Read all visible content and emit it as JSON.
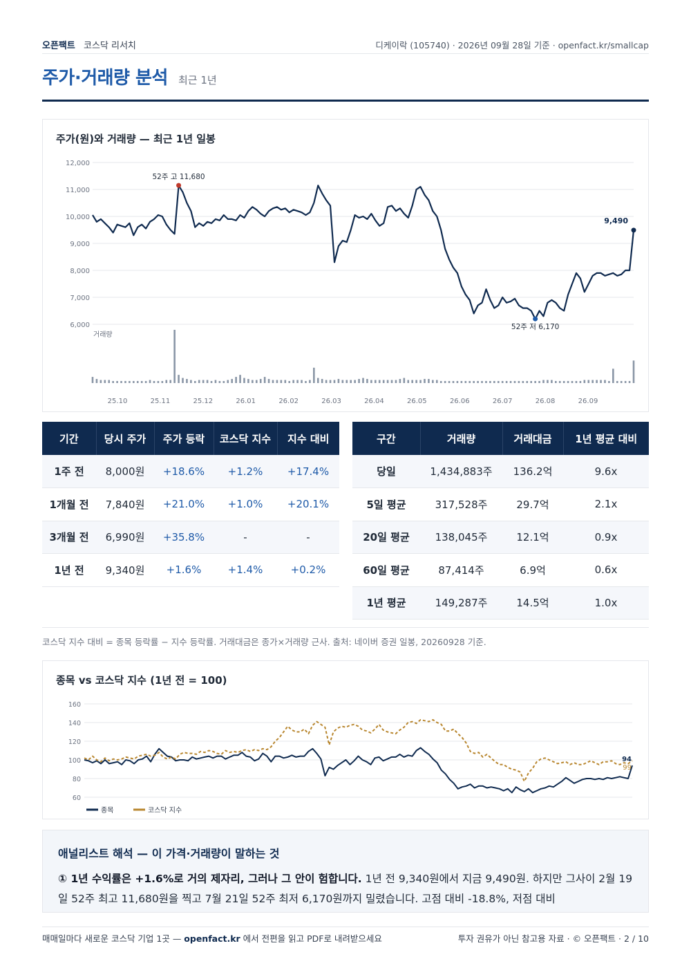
{
  "header": {
    "brand": "오픈팩트",
    "section": "코스닥 리서치",
    "meta": "디케이락 (105740) · 2026년 09월 28일 기준 · openfact.kr/smallcap"
  },
  "title": {
    "main": "주가·거래량 분석",
    "sub": "최근 1년"
  },
  "price_chart_title": "주가(원)와 거래량 — 최근 1년 일봉",
  "chart_data": [
    {
      "type": "line",
      "title": "주가(원)와 거래량 — 최근 1년 일봉",
      "y_ticks": [
        "12,000",
        "11,000",
        "10,000",
        "9,000",
        "8,000",
        "7,000",
        "6,000"
      ],
      "ylim": [
        6000,
        12000
      ],
      "x_ticks": [
        "25.10",
        "25.11",
        "25.12",
        "26.01",
        "26.02",
        "26.03",
        "26.04",
        "26.05",
        "26.06",
        "26.07",
        "26.08",
        "26.09"
      ],
      "volume_label": "거래량",
      "annotations": {
        "high_label": "52주 고 11,680",
        "low_label": "52주 저 6,170",
        "last_label": "9,490"
      },
      "series": [
        {
          "name": "주가",
          "values": [
            10050,
            9800,
            9900,
            9750,
            9600,
            9400,
            9700,
            9650,
            9600,
            9750,
            9300,
            9600,
            9700,
            9550,
            9800,
            9900,
            10050,
            10000,
            9700,
            9500,
            9350,
            11150,
            10900,
            10500,
            10200,
            9600,
            9750,
            9650,
            9800,
            9750,
            9900,
            9850,
            10050,
            9900,
            9900,
            9850,
            10050,
            9950,
            10200,
            10350,
            10250,
            10100,
            10000,
            10200,
            10300,
            10350,
            10250,
            10300,
            10150,
            10250,
            10200,
            10150,
            10050,
            10150,
            10500,
            11150,
            10850,
            10600,
            10400,
            8300,
            8900,
            9100,
            9050,
            9500,
            10050,
            9950,
            10000,
            9900,
            10100,
            9850,
            9650,
            9750,
            10350,
            10400,
            10200,
            10300,
            10100,
            9950,
            10400,
            11000,
            11100,
            10800,
            10600,
            10200,
            10000,
            9500,
            8800,
            8400,
            8100,
            7900,
            7400,
            7100,
            6900,
            6400,
            6700,
            6800,
            7300,
            6900,
            6600,
            6700,
            7000,
            6800,
            6850,
            6950,
            6700,
            6600,
            6600,
            6500,
            6200,
            6500,
            6300,
            6800,
            6900,
            6800,
            6600,
            6500,
            7100,
            7500,
            7900,
            7700,
            7200,
            7500,
            7800,
            7900,
            7900,
            7800,
            7850,
            7900,
            7800,
            7850,
            8000,
            8000,
            9490
          ]
        },
        {
          "name": "거래량",
          "values": [
            6,
            4,
            3,
            3,
            3,
            2,
            2,
            2,
            2,
            2,
            2,
            2,
            2,
            2,
            3,
            2,
            2,
            2,
            3,
            3,
            52,
            8,
            5,
            4,
            3,
            2,
            3,
            3,
            3,
            2,
            3,
            2,
            2,
            3,
            4,
            6,
            8,
            5,
            4,
            3,
            3,
            4,
            6,
            4,
            3,
            3,
            3,
            3,
            2,
            3,
            3,
            3,
            2,
            3,
            15,
            5,
            4,
            3,
            3,
            3,
            4,
            3,
            3,
            3,
            3,
            4,
            5,
            4,
            3,
            3,
            3,
            3,
            3,
            3,
            3,
            4,
            5,
            3,
            3,
            3,
            3,
            4,
            4,
            3,
            3,
            2,
            2,
            2,
            2,
            2,
            2,
            2,
            2,
            2,
            2,
            2,
            2,
            2,
            2,
            2,
            2,
            2,
            2,
            2,
            2,
            2,
            2,
            2,
            2,
            2,
            3,
            3,
            3,
            2,
            2,
            2,
            2,
            2,
            2,
            2,
            3,
            3,
            3,
            3,
            3,
            3,
            2,
            14,
            2,
            2,
            2,
            2,
            22
          ]
        }
      ]
    },
    {
      "type": "line",
      "title": "종목 vs 코스닥 지수 (1년 전 = 100)",
      "y_ticks": [
        "160",
        "140",
        "120",
        "100",
        "80",
        "60"
      ],
      "ylim": [
        60,
        160
      ],
      "end_labels": [
        "94",
        "99"
      ],
      "series": [
        {
          "name": "종목",
          "values": [
            100,
            99,
            97,
            99,
            96,
            100,
            96,
            97,
            98,
            95,
            100,
            99,
            96,
            100,
            101,
            104,
            98,
            106,
            112,
            108,
            104,
            103,
            99,
            100,
            100,
            99,
            103,
            101,
            102,
            103,
            104,
            102,
            104,
            104,
            101,
            103,
            105,
            105,
            108,
            104,
            103,
            99,
            101,
            107,
            104,
            98,
            104,
            104,
            102,
            103,
            105,
            103,
            104,
            104,
            109,
            112,
            107,
            101,
            83,
            92,
            90,
            94,
            97,
            100,
            95,
            99,
            104,
            100,
            98,
            95,
            102,
            103,
            99,
            101,
            103,
            103,
            106,
            103,
            105,
            104,
            110,
            113,
            109,
            106,
            101,
            97,
            89,
            85,
            79,
            75,
            69,
            71,
            72,
            74,
            70,
            72,
            72,
            70,
            71,
            70,
            69,
            67,
            69,
            65,
            71,
            68,
            66,
            69,
            65,
            67,
            69,
            70,
            72,
            71,
            74,
            77,
            81,
            78,
            75,
            77,
            79,
            80,
            80,
            79,
            80,
            79,
            81,
            80,
            81,
            82,
            81,
            80,
            94
          ]
        },
        {
          "name": "코스닥 지수",
          "values": [
            102,
            100,
            104,
            100,
            98,
            102,
            99,
            101,
            100,
            101,
            103,
            102,
            101,
            104,
            105,
            106,
            104,
            105,
            108,
            103,
            101,
            103,
            101,
            106,
            108,
            107,
            107,
            106,
            109,
            108,
            110,
            109,
            107,
            106,
            110,
            108,
            109,
            108,
            110,
            111,
            109,
            111,
            110,
            112,
            111,
            114,
            120,
            124,
            130,
            136,
            132,
            130,
            130,
            133,
            128,
            137,
            141,
            138,
            135,
            116,
            130,
            134,
            136,
            135,
            137,
            138,
            136,
            132,
            131,
            129,
            133,
            138,
            132,
            130,
            129,
            128,
            132,
            135,
            140,
            141,
            139,
            143,
            142,
            141,
            143,
            140,
            138,
            131,
            131,
            133,
            128,
            124,
            118,
            109,
            107,
            108,
            103,
            106,
            102,
            98,
            95,
            95,
            92,
            90,
            89,
            87,
            77,
            86,
            91,
            98,
            101,
            102,
            100,
            98,
            96,
            97,
            98,
            95,
            97,
            95,
            95,
            97,
            99,
            97,
            95,
            98,
            98,
            99,
            96,
            95,
            97,
            96,
            99
          ]
        }
      ]
    }
  ],
  "period_table": {
    "headers": [
      "기간",
      "당시 주가",
      "주가 등락",
      "코스닥 지수",
      "지수 대비"
    ],
    "rows": [
      [
        "1주 전",
        "8,000원",
        "+18.6%",
        "+1.2%",
        "+17.4%"
      ],
      [
        "1개월 전",
        "7,840원",
        "+21.0%",
        "+1.0%",
        "+20.1%"
      ],
      [
        "3개월 전",
        "6,990원",
        "+35.8%",
        "-",
        "-"
      ],
      [
        "1년 전",
        "9,340원",
        "+1.6%",
        "+1.4%",
        "+0.2%"
      ]
    ]
  },
  "volume_table": {
    "headers": [
      "구간",
      "거래량",
      "거래대금",
      "1년 평균 대비"
    ],
    "rows": [
      [
        "당일",
        "1,434,883주",
        "136.2억",
        "9.6x"
      ],
      [
        "5일 평균",
        "317,528주",
        "29.7억",
        "2.1x"
      ],
      [
        "20일 평균",
        "138,045주",
        "12.1억",
        "0.9x"
      ],
      [
        "60일 평균",
        "87,414주",
        "6.9억",
        "0.6x"
      ],
      [
        "1년 평균",
        "149,287주",
        "14.5억",
        "1.0x"
      ]
    ]
  },
  "note": "코스닥 지수 대비 = 종목 등락률 − 지수 등락률. 거래대금은 종가×거래량 근사. 출처: 네이버 증권 일봉, 20260928 기준.",
  "index_chart_title": "종목 vs 코스닥 지수 (1년 전 = 100)",
  "index_legend": [
    "종목",
    "코스닥 지수"
  ],
  "analyst": {
    "title": "애널리스트 해석 — 이 가격·거래량이 말하는 것",
    "bold": "① 1년 수익률은 +1.6%로 거의 제자리, 그러나 그 안이 험합니다.",
    "text": " 1년 전 9,340원에서 지금 9,490원. 하지만 그사이 2월 19일 52주 최고 11,680원을 찍고 7월 21일 52주 최저 6,170원까지 밀렸습니다. 고점 대비 -18.8%, 저점 대비"
  },
  "footer": {
    "left_pre": "매매일마다 새로운 코스닥 기업 1곳 — ",
    "left_link": "openfact.kr",
    "left_post": " 에서 전편을 읽고 PDF로 내려받으세요",
    "right": "투자 권유가 아닌 참고용 자료 · © 오픈팩트 · 2 / 10"
  },
  "colors": {
    "navy": "#0f2a4f",
    "accent": "#1e5aa8",
    "gold": "#b8862e",
    "high": "#c0392b"
  }
}
